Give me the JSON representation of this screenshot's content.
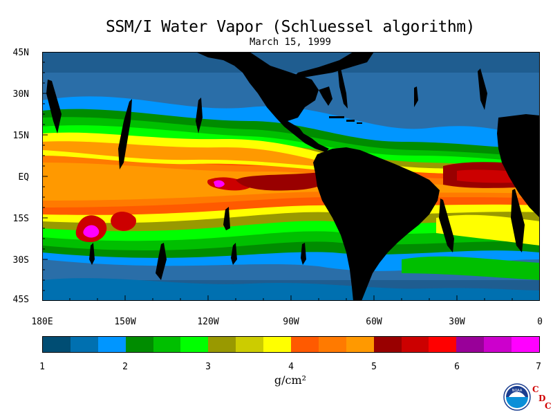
{
  "title": "SSM/I Water Vapor (Schluessel algorithm)",
  "subtitle": "March 15, 1999",
  "axes": {
    "lat_labels": [
      "45N",
      "30N",
      "15N",
      "EQ",
      "15S",
      "30S",
      "45S"
    ],
    "lon_labels": [
      "180E",
      "150W",
      "120W",
      "90W",
      "60W",
      "30W",
      "0"
    ]
  },
  "colorbar": {
    "ticks": [
      "1",
      "2",
      "3",
      "4",
      "5",
      "6",
      "7"
    ],
    "units": "g/cm²",
    "colors": [
      "#004d73",
      "#0070b0",
      "#0096ff",
      "#008c00",
      "#00bf00",
      "#00ff00",
      "#999900",
      "#cccc00",
      "#ffff00",
      "#ff5a00",
      "#ff7a00",
      "#ff9900",
      "#990000",
      "#cc0000",
      "#ff0000",
      "#990099",
      "#cc00cc",
      "#ff00ff"
    ]
  },
  "logo": {
    "letters": [
      "C",
      "D",
      "C"
    ],
    "text": "NOAA"
  },
  "map": {
    "land_color": "#000000",
    "ocean_low": "#2a6ea8"
  }
}
